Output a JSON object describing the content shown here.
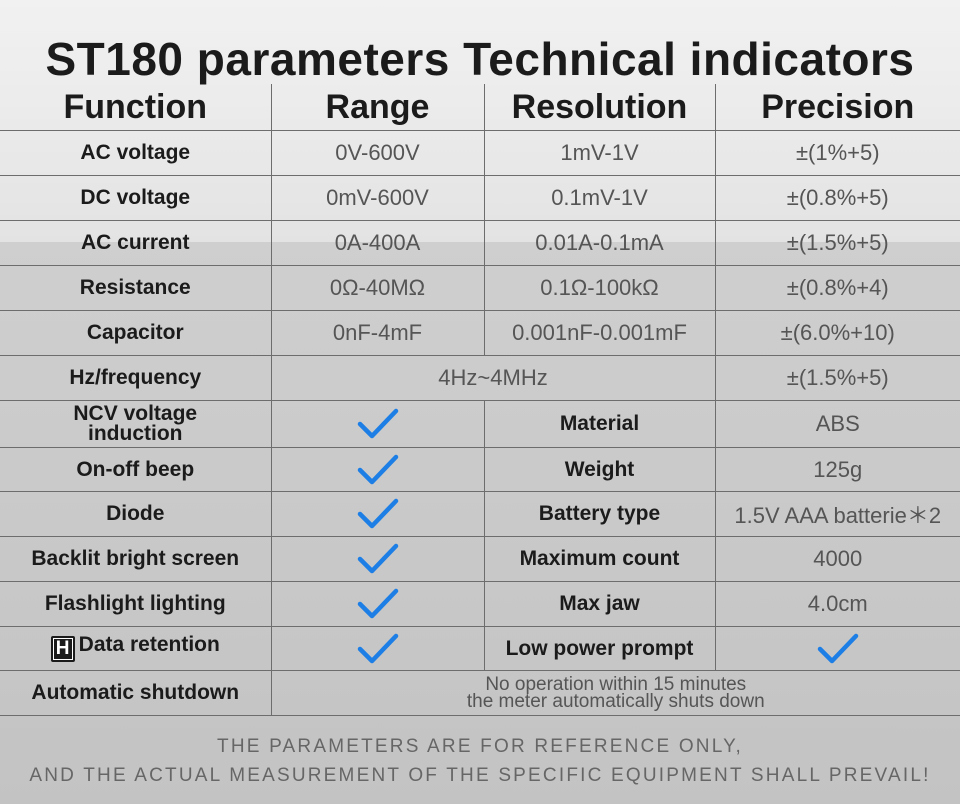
{
  "title": "ST180 parameters Technical indicators",
  "headers": [
    "Function",
    "Range",
    "Resolution",
    "Precision"
  ],
  "measurements": [
    {
      "function": "AC voltage",
      "range": "0V-600V",
      "resolution": "1mV-1V",
      "precision": "±(1%+5)"
    },
    {
      "function": "DC voltage",
      "range": "0mV-600V",
      "resolution": "0.1mV-1V",
      "precision": "±(0.8%+5)"
    },
    {
      "function": "AC current",
      "range": "0A-400A",
      "resolution": "0.01A-0.1mA",
      "precision": "±(1.5%+5)"
    },
    {
      "function": "Resistance",
      "range": "0Ω-40MΩ",
      "resolution": "0.1Ω-100kΩ",
      "precision": "±(0.8%+4)"
    },
    {
      "function": "Capacitor",
      "range": "0nF-4mF",
      "resolution": "0.001nF-0.001mF",
      "precision": "±(6.0%+10)"
    }
  ],
  "frequency": {
    "function": "Hz/frequency",
    "range": "4Hz~4MHz",
    "precision": "±(1.5%+5)"
  },
  "features": [
    {
      "function_line1": "NCV voltage",
      "function_line2": "induction",
      "property": "Material",
      "value": "ABS"
    },
    {
      "function": "On-off beep",
      "property": "Weight",
      "value": "125g"
    },
    {
      "function": "Diode",
      "property": "Battery type",
      "value": "1.5V AAA batterie＊2"
    },
    {
      "function": "Backlit bright screen",
      "property": "Maximum count",
      "value": "4000"
    },
    {
      "function": "Flashlight lighting",
      "property": "Max jaw",
      "value": "4.0cm"
    },
    {
      "function": "Data retention",
      "badge": "H",
      "property": "Low power prompt"
    }
  ],
  "shutdown": {
    "function": "Automatic shutdown",
    "line1": "No operation within 15 minutes",
    "line2": "the meter automatically shuts down"
  },
  "footer": {
    "line1": "THE PARAMETERS ARE FOR REFERENCE ONLY,",
    "line2": "AND THE ACTUAL MEASUREMENT OF THE SPECIFIC EQUIPMENT SHALL PREVAIL!"
  },
  "colors": {
    "check": "#1d7fe6",
    "grid": "#6d6d6d",
    "text": "#1b1b1b"
  },
  "icons": {
    "supported": "check-icon"
  }
}
